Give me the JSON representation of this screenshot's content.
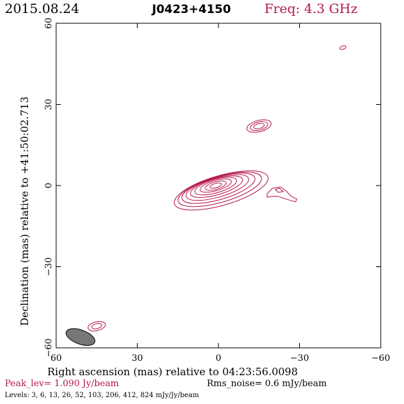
{
  "header": {
    "date": "2015.08.24",
    "source": "J0423+4150",
    "freq": "Freq: 4.3 GHz"
  },
  "footer": {
    "peak": "Peak_lev=  1.090 Jy/beam",
    "noise": "Rms_noise=  0.6 mJy/beam",
    "levels": "Levels:   3,   6,  13,  26,  52, 103, 206, 412, 824 mJy/Jy/beam"
  },
  "colors": {
    "contour": "#b5174a",
    "beam": "#777777",
    "axes": "#000000",
    "freq": "#b5174a",
    "peak": "#b5174a"
  },
  "chart_data": {
    "type": "contour",
    "xlabel": "Right ascension (mas) relative to 04:23:56.0098",
    "ylabel": "Declination (mas) relative to +41:50:02.713",
    "xlim": [
      60,
      -60
    ],
    "ylim": [
      -60,
      60
    ],
    "xticks": [
      60,
      30,
      0,
      -30,
      -60
    ],
    "yticks": [
      60,
      30,
      0,
      -30,
      -60
    ],
    "xtick_labels": [
      "60",
      "30",
      "0",
      "−30",
      "−60"
    ],
    "ytick_labels": [
      "60",
      "30",
      "0",
      "−30",
      "−60"
    ],
    "levels_mJy": [
      3,
      6,
      13,
      26,
      52,
      103,
      206,
      412,
      824
    ],
    "beam": {
      "x": 51,
      "y": -56,
      "major": 5.6,
      "minor": 2.6,
      "pa_deg": -20
    },
    "components": [
      {
        "name": "core",
        "x": 1,
        "y": 0,
        "rings": [
          {
            "a": 18,
            "b": 5.5,
            "rot": -16,
            "dx": -2,
            "dy": -1.8
          },
          {
            "a": 16,
            "b": 4.8,
            "rot": -16,
            "dx": -1.5,
            "dy": -1.4
          },
          {
            "a": 14,
            "b": 4.2,
            "rot": -16,
            "dx": -1,
            "dy": -1
          },
          {
            "a": 12,
            "b": 3.6,
            "rot": -16,
            "dx": -0.6,
            "dy": -0.7
          },
          {
            "a": 10,
            "b": 3.0,
            "rot": -16,
            "dx": -0.3,
            "dy": -0.4
          },
          {
            "a": 8,
            "b": 2.5,
            "rot": -16,
            "dx": 0,
            "dy": -0.2
          },
          {
            "a": 6,
            "b": 1.9,
            "rot": -16,
            "dx": 0,
            "dy": 0
          },
          {
            "a": 4,
            "b": 1.4,
            "rot": -16,
            "dx": 0,
            "dy": 0
          },
          {
            "a": 2.2,
            "b": 0.8,
            "rot": -16,
            "dx": 0,
            "dy": 0
          }
        ]
      },
      {
        "name": "jet-knot-north",
        "x": -15,
        "y": 22,
        "rings": [
          {
            "a": 4.6,
            "b": 2.1,
            "rot": -14,
            "dx": 0,
            "dy": 0
          },
          {
            "a": 3.3,
            "b": 1.5,
            "rot": -14,
            "dx": 0,
            "dy": 0
          },
          {
            "a": 2.0,
            "b": 0.9,
            "rot": -14,
            "dx": 0,
            "dy": 0
          }
        ]
      },
      {
        "name": "far-knot",
        "x": -46,
        "y": 51,
        "rings": [
          {
            "a": 1.2,
            "b": 0.6,
            "rot": -20,
            "dx": 0,
            "dy": 0
          }
        ]
      },
      {
        "name": "counter-knot",
        "x": 45,
        "y": -52,
        "rings": [
          {
            "a": 3.3,
            "b": 1.6,
            "rot": -14,
            "dx": 0,
            "dy": 0
          },
          {
            "a": 1.9,
            "b": 0.9,
            "rot": -14,
            "dx": 0,
            "dy": 0
          }
        ]
      }
    ],
    "tail": {
      "name": "jet-tail",
      "outer": [
        [
          -18,
          -3
        ],
        [
          -20,
          -1
        ],
        [
          -23,
          -0.5
        ],
        [
          -25,
          -2
        ],
        [
          -27,
          -4
        ],
        [
          -29,
          -5
        ],
        [
          -28.5,
          -6
        ],
        [
          -25,
          -5
        ],
        [
          -22,
          -4
        ],
        [
          -20,
          -4
        ],
        [
          -18,
          -4.3
        ]
      ],
      "inner": [
        [
          -21,
          -1.5
        ],
        [
          -22.5,
          -1
        ],
        [
          -24,
          -2.2
        ],
        [
          -22,
          -2.5
        ]
      ]
    }
  }
}
